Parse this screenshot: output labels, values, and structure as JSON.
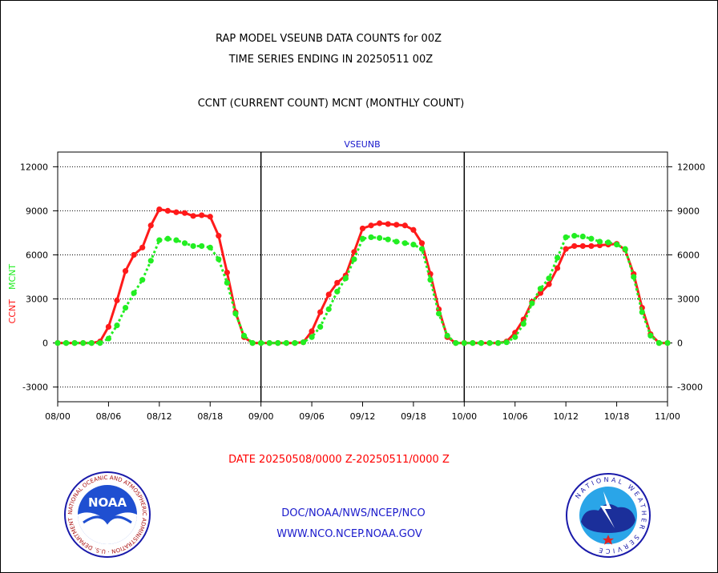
{
  "title": {
    "line1": "RAP MODEL VSEUNB DATA COUNTS for 00Z",
    "line2": "TIME SERIES ENDING IN 20250511 00Z",
    "line3": "CCNT (CURRENT COUNT) MCNT (MONTHLY COUNT)"
  },
  "footer": {
    "date_range": "DATE 20250508/0000 Z-20250511/0000 Z",
    "link1": "DOC/NOAA/NWS/NCEP/NCO",
    "link2": "WWW.NCO.NCEP.NOAA.GOV"
  },
  "logos": {
    "noaa_text": "NOAA",
    "noaa_ring": "NATIONAL OCEANIC AND ATMOSPHERIC ADMINISTRATION · U.S. DEPARTMENT OF COMMERCE",
    "nws_ring": "NATIONAL WEATHER SERVICE"
  },
  "colors": {
    "ccnt": "#ff1a1a",
    "mcnt": "#22ee22",
    "title": "#000000",
    "date": "#ff0000",
    "links": "#1a1acc",
    "panel_label": "#1a1acc"
  },
  "chart_data": {
    "type": "line",
    "panel_label": "VSEUNB",
    "ylabel_left": "CCNT",
    "ylabel_right": "MCNT",
    "ylim": [
      -4000,
      13000
    ],
    "yticks": [
      -3000,
      0,
      3000,
      6000,
      9000,
      12000
    ],
    "ytick_labels": [
      "-3000",
      "0",
      "3000",
      "6000",
      "9000",
      "12000"
    ],
    "xtick_labels": [
      "08/00",
      "08/06",
      "08/12",
      "08/18",
      "09/00",
      "09/06",
      "09/12",
      "09/18",
      "10/00",
      "10/06",
      "10/12",
      "10/18",
      "11/00"
    ],
    "x_unit": "hour",
    "grid": "horizontal dotted",
    "series": [
      {
        "name": "CCNT",
        "color": "#ff1a1a",
        "x": [
          0,
          1,
          2,
          3,
          4,
          5,
          6,
          7,
          8,
          9,
          10,
          11,
          12,
          13,
          14,
          15,
          16,
          17,
          18,
          19,
          20,
          21,
          22,
          23,
          24,
          25,
          26,
          27,
          28,
          29,
          30,
          31,
          32,
          33,
          34,
          35,
          36,
          37,
          38,
          39,
          40,
          41,
          42,
          43,
          44,
          45,
          46,
          47,
          48,
          49,
          50,
          51,
          52,
          53,
          54,
          55,
          56,
          57,
          58,
          59,
          60,
          61,
          62,
          63,
          64,
          65,
          66,
          67,
          68,
          69,
          70,
          71,
          72
        ],
        "values": [
          0,
          0,
          0,
          0,
          0,
          100,
          1100,
          2900,
          4900,
          6000,
          6500,
          8000,
          9100,
          9000,
          8900,
          8850,
          8650,
          8700,
          8600,
          7300,
          4800,
          2100,
          400,
          0,
          0,
          0,
          0,
          0,
          0,
          50,
          800,
          2100,
          3300,
          4100,
          4600,
          6200,
          7800,
          8000,
          8150,
          8100,
          8050,
          8000,
          7700,
          6800,
          4700,
          2300,
          400,
          0,
          0,
          0,
          0,
          0,
          0,
          100,
          700,
          1600,
          2800,
          3400,
          4000,
          5100,
          6400,
          6600,
          6600,
          6600,
          6650,
          6700,
          6750,
          6350,
          4700,
          2400,
          600,
          0,
          0
        ]
      },
      {
        "name": "MCNT",
        "color": "#22ee22",
        "x": [
          0,
          1,
          2,
          3,
          4,
          5,
          6,
          7,
          8,
          9,
          10,
          11,
          12,
          13,
          14,
          15,
          16,
          17,
          18,
          19,
          20,
          21,
          22,
          23,
          24,
          25,
          26,
          27,
          28,
          29,
          30,
          31,
          32,
          33,
          34,
          35,
          36,
          37,
          38,
          39,
          40,
          41,
          42,
          43,
          44,
          45,
          46,
          47,
          48,
          49,
          50,
          51,
          52,
          53,
          54,
          55,
          56,
          57,
          58,
          59,
          60,
          61,
          62,
          63,
          64,
          65,
          66,
          67,
          68,
          69,
          70,
          71,
          72
        ],
        "values": [
          0,
          0,
          0,
          0,
          0,
          0,
          300,
          1200,
          2400,
          3400,
          4300,
          5600,
          7000,
          7100,
          7000,
          6800,
          6600,
          6600,
          6500,
          5700,
          4100,
          2000,
          500,
          0,
          0,
          0,
          0,
          0,
          0,
          50,
          400,
          1100,
          2300,
          3500,
          4400,
          5700,
          7100,
          7200,
          7150,
          7050,
          6900,
          6800,
          6700,
          6400,
          4300,
          2000,
          500,
          0,
          0,
          0,
          0,
          0,
          0,
          50,
          400,
          1300,
          2700,
          3700,
          4400,
          5800,
          7200,
          7300,
          7250,
          7100,
          6900,
          6850,
          6700,
          6400,
          4500,
          2100,
          500,
          0,
          0
        ]
      }
    ]
  }
}
